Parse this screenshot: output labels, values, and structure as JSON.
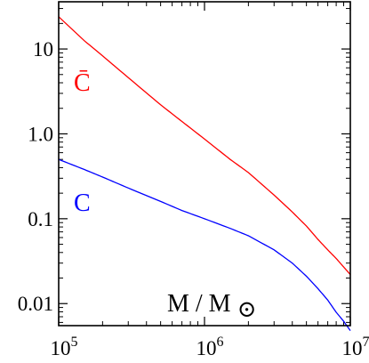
{
  "chart_data": {
    "type": "line",
    "title": "",
    "xlabel": "M / M",
    "x_label_symbol": "⊙",
    "ylabel": "",
    "xscale": "log",
    "yscale": "log",
    "xlim": [
      100000,
      10000000
    ],
    "ylim": [
      0.0055,
      36
    ],
    "xticks": [
      {
        "value": 100000,
        "base": "10",
        "exp": "5"
      },
      {
        "value": 1000000,
        "base": "10",
        "exp": "6"
      },
      {
        "value": 10000000,
        "base": "10",
        "exp": "7"
      }
    ],
    "yticks": [
      {
        "value": 10,
        "label": "10"
      },
      {
        "value": 1,
        "label": "1.0"
      },
      {
        "value": 0.1,
        "label": "0.1"
      },
      {
        "value": 0.01,
        "label": "0.01"
      }
    ],
    "series": [
      {
        "name": "C̄",
        "color": "#ff0000",
        "x": [
          100000,
          150000,
          200000,
          300000,
          500000,
          700000,
          1000000,
          1500000,
          2000000,
          3000000,
          4000000,
          5000000,
          6000000,
          7000000,
          8000000,
          9000000,
          10000000
        ],
        "y": [
          24,
          12.5,
          8.3,
          4.6,
          2.2,
          1.4,
          0.87,
          0.5,
          0.35,
          0.19,
          0.12,
          0.082,
          0.057,
          0.043,
          0.034,
          0.027,
          0.022
        ]
      },
      {
        "name": "C",
        "color": "#0000ff",
        "x": [
          100000,
          150000,
          200000,
          300000,
          500000,
          700000,
          1000000,
          1500000,
          2000000,
          3000000,
          4000000,
          5000000,
          6000000,
          7000000,
          8000000,
          9000000,
          10000000
        ],
        "y": [
          0.5,
          0.38,
          0.31,
          0.23,
          0.16,
          0.125,
          0.1,
          0.077,
          0.063,
          0.043,
          0.03,
          0.021,
          0.015,
          0.011,
          0.0079,
          0.0062,
          0.0048
        ]
      }
    ]
  }
}
